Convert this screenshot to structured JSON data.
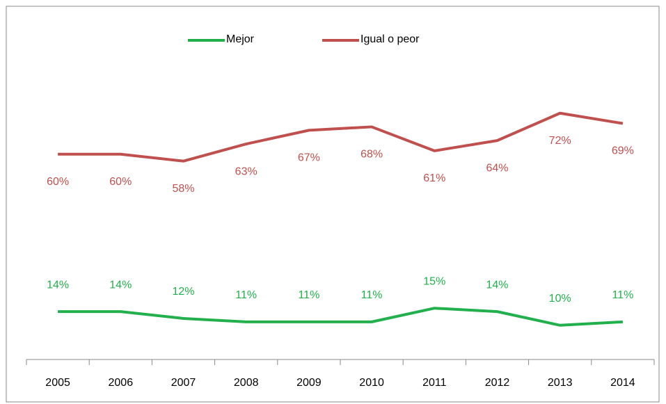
{
  "chart_data": {
    "type": "line",
    "categories": [
      "2005",
      "2006",
      "2007",
      "2008",
      "2009",
      "2010",
      "2011",
      "2012",
      "2013",
      "2014"
    ],
    "series": [
      {
        "name": "Mejor",
        "color": "#21b04b",
        "values": [
          14,
          14,
          12,
          11,
          11,
          11,
          15,
          14,
          10,
          11
        ],
        "value_labels": [
          "14%",
          "14%",
          "12%",
          "11%",
          "11%",
          "11%",
          "15%",
          "14%",
          "10%",
          "11%"
        ]
      },
      {
        "name": "Igual o peor",
        "color": "#c0504d",
        "values": [
          60,
          60,
          58,
          63,
          67,
          68,
          61,
          64,
          72,
          69
        ],
        "value_labels": [
          "60%",
          "60%",
          "58%",
          "63%",
          "67%",
          "68%",
          "61%",
          "64%",
          "72%",
          "69%"
        ]
      }
    ],
    "ylim": [
      0,
      100
    ],
    "legend": "top"
  }
}
